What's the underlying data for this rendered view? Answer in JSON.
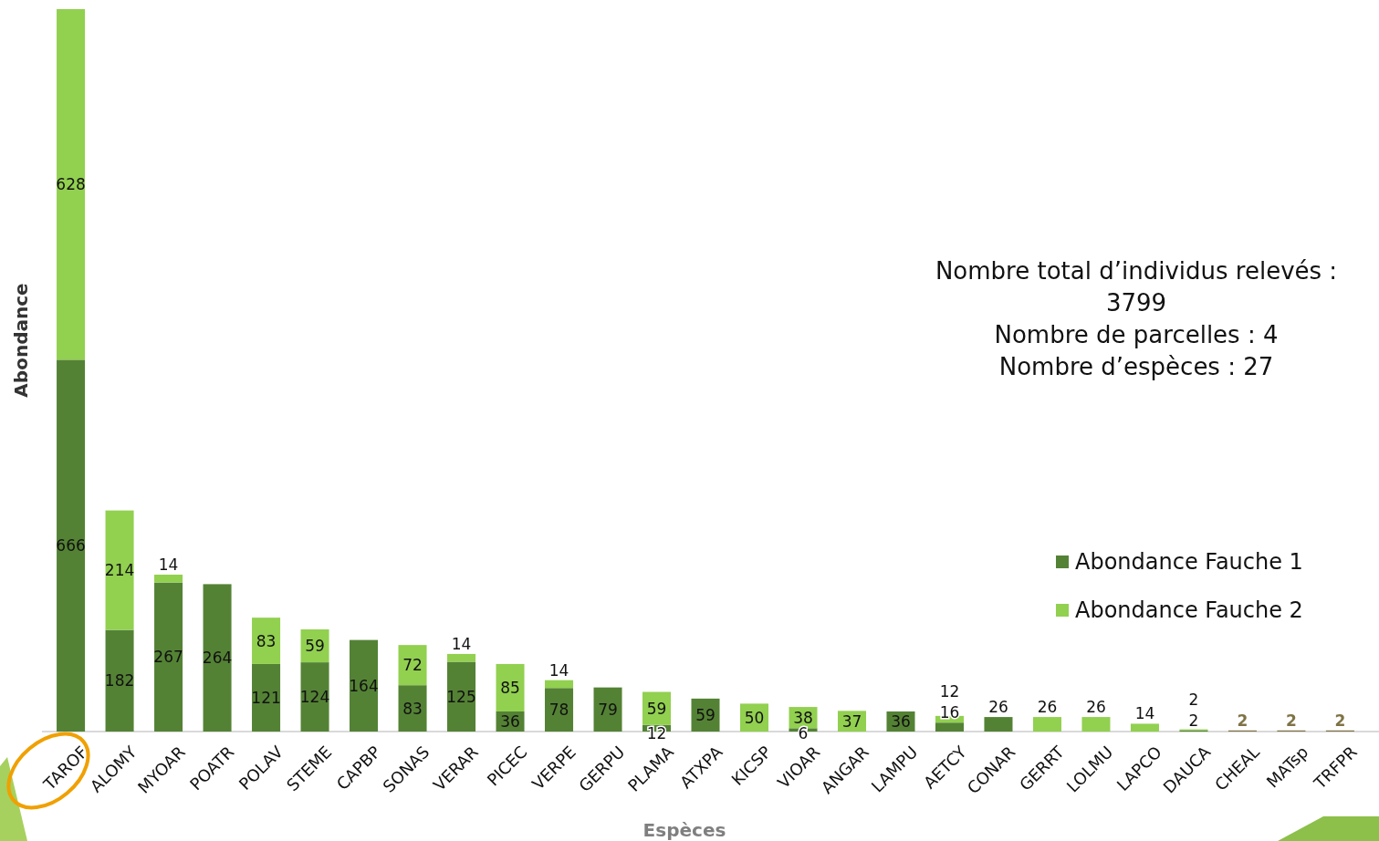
{
  "chart_data": {
    "type": "bar",
    "stacked": true,
    "xlabel": "Espèces",
    "ylabel": "Abondance",
    "data_labels": true,
    "legend": "right",
    "categories": [
      "TAROF",
      "ALOMY",
      "MYOAR",
      "POATR",
      "POLAV",
      "STEME",
      "CAPBP",
      "SONAS",
      "VERAR",
      "PICEC",
      "VERPE",
      "GERPU",
      "PLAMA",
      "ATXPA",
      "KICSP",
      "VIOAR",
      "ANGAR",
      "LAMPU",
      "AETCY",
      "CONAR",
      "GERRT",
      "LOLMU",
      "LAPCO",
      "DAUCA",
      "CHEAL",
      "MATsp",
      "TRFPR"
    ],
    "series": [
      {
        "name": "Abondance Fauche 1",
        "color": "#548235",
        "values": [
          666,
          182,
          267,
          264,
          121,
          124,
          164,
          83,
          125,
          36,
          78,
          79,
          12,
          59,
          null,
          6,
          null,
          36,
          16,
          26,
          null,
          null,
          null,
          2,
          null,
          null,
          null
        ]
      },
      {
        "name": "Abondance Fauche 2",
        "color": "#92d050",
        "values": [
          628,
          214,
          14,
          null,
          83,
          59,
          null,
          72,
          14,
          85,
          14,
          null,
          59,
          null,
          50,
          38,
          37,
          null,
          12,
          null,
          26,
          26,
          14,
          2,
          null,
          null,
          null
        ]
      },
      {
        "color": "#7f7346",
        "values": [
          null,
          null,
          null,
          null,
          null,
          null,
          null,
          null,
          null,
          null,
          null,
          null,
          null,
          null,
          null,
          null,
          null,
          null,
          null,
          null,
          null,
          null,
          null,
          null,
          2,
          2,
          2
        ]
      }
    ],
    "annotations": [
      "Nombre total d’individus relevés : 3799",
      "Nombre de parcelles : 4",
      "Nombre d’espèces : 27"
    ]
  }
}
